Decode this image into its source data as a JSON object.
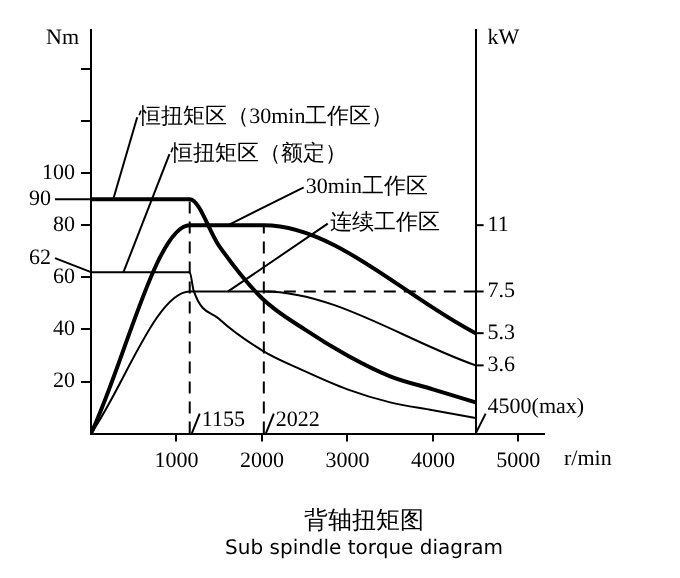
{
  "chart_data": {
    "type": "line",
    "title": "背轴扭矩图",
    "subtitle": "Sub spindle torque diagram",
    "xlabel": "r/min",
    "ylabel": "Nm",
    "y2label": "kW",
    "xlim": [
      0,
      5300
    ],
    "xticks": [
      1000,
      2000,
      3000,
      4000,
      5000
    ],
    "ylim": [
      0,
      155
    ],
    "yticks": [
      20,
      40,
      60,
      80,
      100,
      {
        "value": 120,
        "label": null
      },
      {
        "value": 140,
        "label": null
      }
    ],
    "y2lim": [
      0,
      21.3
    ],
    "y2ticks": [
      3.6,
      5.3,
      7.5,
      11
    ],
    "series": [
      {
        "color": "#000000",
        "x": [
          0,
          1155,
          1500,
          2000,
          2500,
          3000,
          3500,
          4000,
          4500
        ],
        "values": [
          90,
          90,
          72,
          52,
          40,
          30,
          22,
          17,
          12
        ]
      },
      {
        "color": "#000000",
        "x": [
          0,
          1155,
          1200,
          1500,
          2000,
          2500,
          3000,
          3500,
          4000,
          4500
        ],
        "values": [
          62,
          62,
          55,
          44,
          32,
          24,
          17,
          12,
          9,
          6
        ]
      },
      {
        "color": "#000000",
        "axis": "y2",
        "x": [
          0,
          1155,
          2022,
          4500
        ],
        "values": [
          0,
          11,
          11,
          5.3
        ]
      },
      {
        "color": "#000000",
        "axis": "y2",
        "x": [
          0,
          1155,
          2022,
          4500
        ],
        "values": [
          0,
          7.5,
          7.5,
          3.6
        ]
      }
    ],
    "ref_lines": [
      {
        "axis": "x",
        "value": 1155,
        "label": "1155",
        "line_style": "dashed"
      },
      {
        "axis": "x",
        "value": 2022,
        "label": "2022",
        "line_style": "dashed"
      },
      {
        "axis": "y2",
        "value": 7.5,
        "line_style": "dashed"
      }
    ],
    "annotations": [
      {
        "text": "恒扭矩区（30min工作区）",
        "x": 260,
        "y": 90
      },
      {
        "text": "恒扭矩区（额定）",
        "x": 380,
        "y": 62
      },
      {
        "text": "30min工作区",
        "x": 1600,
        "y": 80
      },
      {
        "text": "连续工作区",
        "x": 1600,
        "y": 54.5
      },
      "4500(max)",
      {
        "text": "90",
        "x": 0,
        "y": 90
      },
      {
        "text": "62",
        "x": 0,
        "y": 62
      }
    ],
    "legend": false,
    "marker": "none",
    "line_style": "solid"
  }
}
